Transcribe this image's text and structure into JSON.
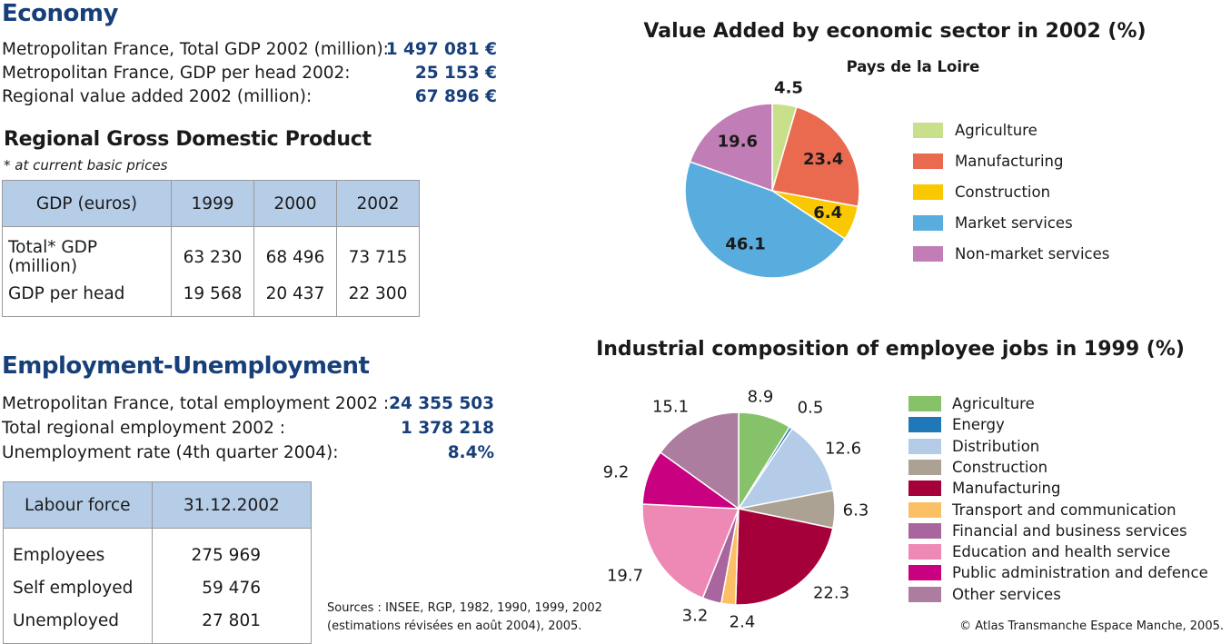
{
  "economy": {
    "title": "Economy",
    "rows": [
      {
        "label": "Metropolitan France, Total GDP 2002 (million):",
        "value": "1 497 081 €"
      },
      {
        "label": "Metropolitan France, GDP per head 2002:",
        "value": "25 153 €"
      },
      {
        "label": "Regional value added 2002 (million):",
        "value": "67 896 €"
      }
    ]
  },
  "gdp": {
    "title": "Regional Gross Domestic Product",
    "note": "* at current basic prices",
    "headers": [
      "GDP (euros)",
      "1999",
      "2000",
      "2002"
    ],
    "rows": [
      [
        "Total* GDP (million)",
        "63 230",
        "68 496",
        "73 715"
      ],
      [
        "GDP per head",
        "19 568",
        "20 437",
        "22 300"
      ]
    ]
  },
  "employment": {
    "title": "Employment-Unemployment",
    "rows": [
      {
        "label": "Metropolitan France, total employment 2002 :",
        "value": "24 355 503"
      },
      {
        "label": "Total regional employment 2002 :",
        "value": "1 378 218"
      },
      {
        "label": "Unemployment rate (4th quarter 2004):",
        "value": "8.4%"
      }
    ]
  },
  "labour": {
    "headers": [
      "Labour force",
      "31.12.2002"
    ],
    "rows": [
      [
        "Employees",
        "275 969"
      ],
      [
        "Self employed",
        "59 476"
      ],
      [
        "Unemployed",
        "27 801"
      ]
    ]
  },
  "sources": {
    "line1": "Sources : INSEE, RGP, 1982, 1990, 1999, 2002",
    "line2": "(estimations révisées en août 2004), 2005."
  },
  "copyright": "© Atlas Transmanche Espace Manche, 2005.",
  "chart_data": [
    {
      "type": "pie",
      "title": "Value Added by economic sector in 2002 (%)",
      "subtitle": "Pays de la Loire",
      "categories": [
        "Agriculture",
        "Manufacturing",
        "Construction",
        "Market services",
        "Non-market services"
      ],
      "values": [
        4.5,
        23.4,
        6.4,
        46.1,
        19.6
      ],
      "colors": [
        "#c8df8c",
        "#ea6a50",
        "#fac800",
        "#59acde",
        "#c17db6"
      ],
      "legend": "right"
    },
    {
      "type": "pie",
      "title": "Industrial composition of employee jobs in 1999 (%)",
      "categories": [
        "Agriculture",
        "Energy",
        "Distribution",
        "Construction",
        "Manufacturing",
        "Transport and communication",
        "Financial and business services",
        "Education and health service",
        "Public administration and defence",
        "Other services"
      ],
      "values": [
        8.9,
        0.5,
        12.6,
        6.3,
        22.3,
        2.4,
        3.2,
        19.7,
        9.2,
        15.1
      ],
      "colors": [
        "#86c269",
        "#1f79b8",
        "#b4cce8",
        "#aca294",
        "#a6003a",
        "#fbbf66",
        "#a9659e",
        "#ee89b6",
        "#c90080",
        "#ac7d9e"
      ],
      "legend": "right"
    }
  ]
}
